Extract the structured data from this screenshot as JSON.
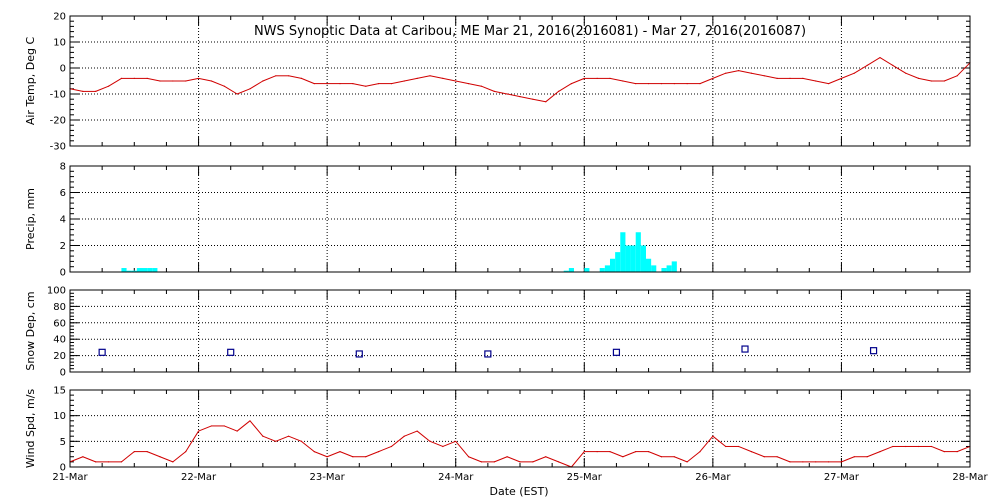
{
  "chart_data": {
    "type": "line",
    "title": "NWS Synoptic Data at Caribou, ME   Mar 21, 2016(2016081) - Mar 27, 2016(2016087)",
    "xlabel": "Date (EST)",
    "x_ticks": [
      "21-Mar",
      "22-Mar",
      "23-Mar",
      "24-Mar",
      "25-Mar",
      "26-Mar",
      "27-Mar",
      "28-Mar"
    ],
    "xlim": [
      0,
      7
    ],
    "grid": true,
    "panels": [
      {
        "name": "air_temp",
        "ylabel": "Air Temp, Deg C",
        "type": "line",
        "color": "#d00000",
        "ylim": [
          -30,
          20
        ],
        "yticks": [
          -30,
          -20,
          -10,
          0,
          10,
          20
        ],
        "x": [
          0,
          0.1,
          0.2,
          0.3,
          0.4,
          0.5,
          0.6,
          0.7,
          0.8,
          0.9,
          1.0,
          1.1,
          1.2,
          1.3,
          1.4,
          1.5,
          1.6,
          1.7,
          1.8,
          1.9,
          2.0,
          2.1,
          2.2,
          2.3,
          2.4,
          2.5,
          2.6,
          2.7,
          2.8,
          2.9,
          3.0,
          3.1,
          3.2,
          3.3,
          3.4,
          3.5,
          3.6,
          3.7,
          3.8,
          3.9,
          4.0,
          4.1,
          4.2,
          4.3,
          4.4,
          4.5,
          4.6,
          4.7,
          4.8,
          4.9,
          5.0,
          5.1,
          5.2,
          5.3,
          5.4,
          5.5,
          5.6,
          5.7,
          5.8,
          5.9,
          6.0,
          6.1,
          6.2,
          6.3,
          6.4,
          6.5,
          6.6,
          6.7,
          6.8,
          6.9,
          7.0
        ],
        "values": [
          -8,
          -9,
          -9,
          -7,
          -4,
          -4,
          -4,
          -5,
          -5,
          -5,
          -4,
          -5,
          -7,
          -10,
          -8,
          -5,
          -3,
          -3,
          -4,
          -6,
          -6,
          -6,
          -6,
          -7,
          -6,
          -6,
          -5,
          -4,
          -3,
          -4,
          -5,
          -6,
          -7,
          -9,
          -10,
          -11,
          -12,
          -13,
          -9,
          -6,
          -4,
          -4,
          -4,
          -5,
          -6,
          -6,
          -6,
          -6,
          -6,
          -6,
          -4,
          -2,
          -1,
          -2,
          -3,
          -4,
          -4,
          -4,
          -5,
          -6,
          -4,
          -2,
          1,
          4,
          1,
          -2,
          -4,
          -5,
          -5,
          -3,
          2
        ],
        "extra_x": [
          5.49,
          5.55,
          5.63,
          5.7
        ],
        "extra_values": [
          -4,
          -5,
          -6,
          -7
        ]
      },
      {
        "name": "precip",
        "ylabel": "Precip, mm",
        "type": "bar",
        "color": "#00ffff",
        "ylim": [
          0,
          8
        ],
        "yticks": [
          0,
          2,
          4,
          6,
          8
        ],
        "bar_width": 0.04,
        "x": [
          0.4,
          0.44,
          0.48,
          0.52,
          0.56,
          0.6,
          0.64,
          3.84,
          3.88,
          4.0,
          4.12,
          4.16,
          4.2,
          4.24,
          4.28,
          4.32,
          4.36,
          4.4,
          4.44,
          4.48,
          4.52,
          4.6,
          4.64,
          4.68
        ],
        "values": [
          0.3,
          0.1,
          0.1,
          0.3,
          0.3,
          0.3,
          0.3,
          0.1,
          0.3,
          0.3,
          0.3,
          0.5,
          1.0,
          1.5,
          3.0,
          2.0,
          2.0,
          3.0,
          2.0,
          1.0,
          0.5,
          0.3,
          0.5,
          0.8
        ]
      },
      {
        "name": "snow_depth",
        "ylabel": "Snow Dep, cm",
        "type": "scatter",
        "color": "#00008b",
        "ylim": [
          0,
          100
        ],
        "yticks": [
          0,
          20,
          40,
          60,
          80,
          100
        ],
        "x": [
          0.25,
          1.25,
          2.25,
          3.25,
          4.25,
          5.25,
          6.25
        ],
        "values": [
          24,
          24,
          22,
          22,
          24,
          28,
          26
        ]
      },
      {
        "name": "wind_speed",
        "ylabel": "Wind Spd, m/s",
        "type": "line",
        "color": "#d00000",
        "ylim": [
          0,
          15
        ],
        "yticks": [
          0,
          5,
          10,
          15
        ],
        "x": [
          0,
          0.1,
          0.2,
          0.3,
          0.4,
          0.5,
          0.6,
          0.7,
          0.8,
          0.9,
          1.0,
          1.1,
          1.2,
          1.3,
          1.4,
          1.5,
          1.6,
          1.7,
          1.8,
          1.9,
          2.0,
          2.1,
          2.2,
          2.3,
          2.4,
          2.5,
          2.6,
          2.7,
          2.8,
          2.9,
          3.0,
          3.1,
          3.2,
          3.3,
          3.4,
          3.5,
          3.6,
          3.7,
          3.8,
          3.9,
          4.0,
          4.1,
          4.2,
          4.3,
          4.4,
          4.5,
          4.6,
          4.7,
          4.8,
          4.9,
          5.0,
          5.1,
          5.2,
          5.3,
          5.4,
          5.5,
          5.6,
          5.7,
          5.8,
          5.9,
          6.0,
          6.1,
          6.2,
          6.3,
          6.4,
          6.5,
          6.6,
          6.7,
          6.8,
          6.9,
          7.0
        ],
        "values": [
          1,
          2,
          1,
          1,
          1,
          3,
          3,
          2,
          1,
          3,
          7,
          8,
          8,
          7,
          9,
          6,
          5,
          6,
          5,
          3,
          2,
          3,
          2,
          2,
          3,
          4,
          6,
          7,
          5,
          4,
          5,
          2,
          1,
          1,
          2,
          1,
          1,
          2,
          1,
          0,
          3,
          3,
          3,
          2,
          3,
          3,
          2,
          2,
          1,
          3,
          6,
          4,
          4,
          3,
          2,
          2,
          1,
          1,
          1,
          1,
          1,
          2,
          2,
          3,
          4,
          4,
          4,
          4,
          3,
          3,
          4
        ]
      }
    ]
  }
}
